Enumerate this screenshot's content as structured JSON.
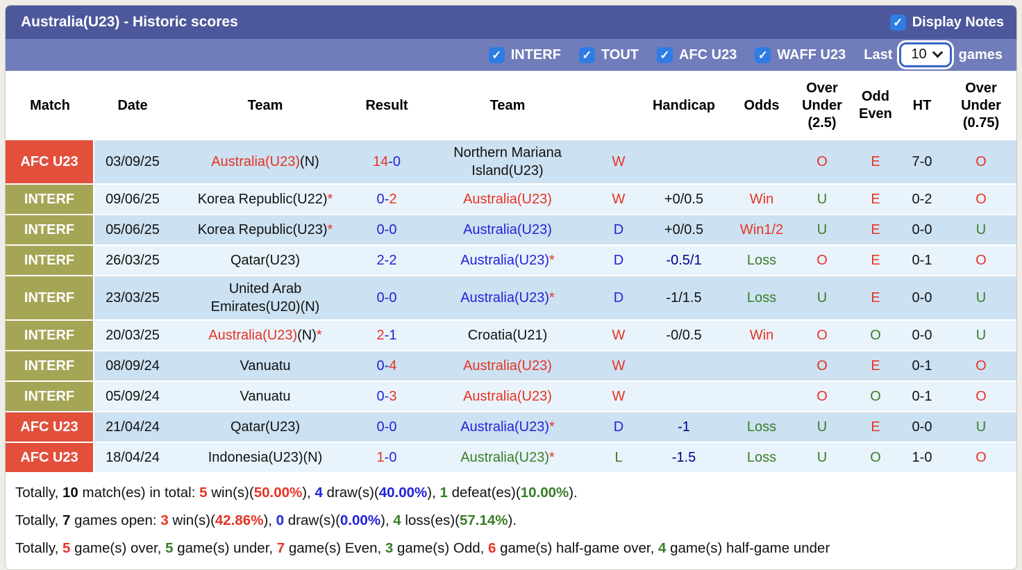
{
  "palette": {
    "titlebar_bg": "#4c589b",
    "filterbar_bg": "#717cba",
    "checkbox_blue": "#2e7ce4",
    "afc_label_bg": "#e2503c",
    "interf_label_bg": "#a5a556",
    "row_dark_bg": "#cce1f1",
    "row_light_bg": "#e9f3fb",
    "win_red": "#e63323",
    "draw_blue": "#2323d9",
    "loss_green": "#3a7d28",
    "handicap_navy": "#00008b"
  },
  "titlebar": {
    "title": "Australia(U23) - Historic scores",
    "display_notes": {
      "label": "Display Notes",
      "checked": true
    }
  },
  "filterbar": {
    "checkboxes": [
      {
        "label": "INTERF",
        "checked": true
      },
      {
        "label": "TOUT",
        "checked": true
      },
      {
        "label": "AFC U23",
        "checked": true
      },
      {
        "label": "WAFF U23",
        "checked": true
      }
    ],
    "last_label": "Last",
    "games_count": "10",
    "games_label": "games"
  },
  "table": {
    "headers": [
      "Match",
      "Date",
      "Team",
      "Result",
      "Team",
      "",
      "Handicap",
      "Odds",
      "Over Under (2.5)",
      "Odd Even",
      "HT",
      "Over Under (0.75)"
    ],
    "rows": [
      {
        "league": {
          "text": "AFC U23",
          "type": "afc"
        },
        "date": "03/09/25",
        "team1": [
          {
            "t": "Australia(U23)",
            "c": "red"
          },
          {
            "t": "(N)",
            "c": "black"
          }
        ],
        "result": [
          {
            "t": "14",
            "c": "red"
          },
          {
            "t": "-0",
            "c": "blue"
          }
        ],
        "team2": [
          {
            "t": "Northern Mariana Island(U23)",
            "c": "black"
          }
        ],
        "wdl": {
          "t": "W",
          "c": "red"
        },
        "handicap": {
          "t": "",
          "c": "black"
        },
        "odds": {
          "t": "",
          "c": "red"
        },
        "ou25": {
          "t": "O",
          "c": "red"
        },
        "oddeven": {
          "t": "E",
          "c": "red"
        },
        "ht": "7-0",
        "ou075": {
          "t": "O",
          "c": "red"
        }
      },
      {
        "league": {
          "text": "INTERF",
          "type": "interf"
        },
        "date": "09/06/25",
        "team1": [
          {
            "t": "Korea Republic(U22)",
            "c": "black"
          },
          {
            "t": "*",
            "c": "red"
          }
        ],
        "result": [
          {
            "t": "0-",
            "c": "blue"
          },
          {
            "t": "2",
            "c": "red"
          }
        ],
        "team2": [
          {
            "t": "Australia(U23)",
            "c": "red"
          }
        ],
        "wdl": {
          "t": "W",
          "c": "red"
        },
        "handicap": {
          "t": "+0/0.5",
          "c": "black"
        },
        "odds": {
          "t": "Win",
          "c": "red"
        },
        "ou25": {
          "t": "U",
          "c": "green"
        },
        "oddeven": {
          "t": "E",
          "c": "red"
        },
        "ht": "0-2",
        "ou075": {
          "t": "O",
          "c": "red"
        }
      },
      {
        "league": {
          "text": "INTERF",
          "type": "interf"
        },
        "date": "05/06/25",
        "team1": [
          {
            "t": "Korea Republic(U23)",
            "c": "black"
          },
          {
            "t": "*",
            "c": "red"
          }
        ],
        "result": [
          {
            "t": "0-0",
            "c": "blue"
          }
        ],
        "team2": [
          {
            "t": "Australia(U23)",
            "c": "blue"
          }
        ],
        "wdl": {
          "t": "D",
          "c": "blue"
        },
        "handicap": {
          "t": "+0/0.5",
          "c": "black"
        },
        "odds": {
          "t": "Win1/2",
          "c": "red"
        },
        "ou25": {
          "t": "U",
          "c": "green"
        },
        "oddeven": {
          "t": "E",
          "c": "red"
        },
        "ht": "0-0",
        "ou075": {
          "t": "U",
          "c": "green"
        }
      },
      {
        "league": {
          "text": "INTERF",
          "type": "interf"
        },
        "date": "26/03/25",
        "team1": [
          {
            "t": "Qatar(U23)",
            "c": "black"
          }
        ],
        "result": [
          {
            "t": "2-2",
            "c": "blue"
          }
        ],
        "team2": [
          {
            "t": "Australia(U23)",
            "c": "blue"
          },
          {
            "t": "*",
            "c": "red"
          }
        ],
        "wdl": {
          "t": "D",
          "c": "blue"
        },
        "handicap": {
          "t": "-0.5/1",
          "c": "navy"
        },
        "odds": {
          "t": "Loss",
          "c": "green"
        },
        "ou25": {
          "t": "O",
          "c": "red"
        },
        "oddeven": {
          "t": "E",
          "c": "red"
        },
        "ht": "0-1",
        "ou075": {
          "t": "O",
          "c": "red"
        }
      },
      {
        "league": {
          "text": "INTERF",
          "type": "interf"
        },
        "date": "23/03/25",
        "team1": [
          {
            "t": "United Arab Emirates(U20)(N)",
            "c": "black"
          }
        ],
        "result": [
          {
            "t": "0-0",
            "c": "blue"
          }
        ],
        "team2": [
          {
            "t": "Australia(U23)",
            "c": "blue"
          },
          {
            "t": "*",
            "c": "red"
          }
        ],
        "wdl": {
          "t": "D",
          "c": "blue"
        },
        "handicap": {
          "t": "-1/1.5",
          "c": "black"
        },
        "odds": {
          "t": "Loss",
          "c": "green"
        },
        "ou25": {
          "t": "U",
          "c": "green"
        },
        "oddeven": {
          "t": "E",
          "c": "red"
        },
        "ht": "0-0",
        "ou075": {
          "t": "U",
          "c": "green"
        }
      },
      {
        "league": {
          "text": "INTERF",
          "type": "interf"
        },
        "date": "20/03/25",
        "team1": [
          {
            "t": "Australia(U23)",
            "c": "red"
          },
          {
            "t": "(N)",
            "c": "black"
          },
          {
            "t": "*",
            "c": "red"
          }
        ],
        "result": [
          {
            "t": "2",
            "c": "red"
          },
          {
            "t": "-1",
            "c": "blue"
          }
        ],
        "team2": [
          {
            "t": "Croatia(U21)",
            "c": "black"
          }
        ],
        "wdl": {
          "t": "W",
          "c": "red"
        },
        "handicap": {
          "t": "-0/0.5",
          "c": "black"
        },
        "odds": {
          "t": "Win",
          "c": "red"
        },
        "ou25": {
          "t": "O",
          "c": "red"
        },
        "oddeven": {
          "t": "O",
          "c": "green"
        },
        "ht": "0-0",
        "ou075": {
          "t": "U",
          "c": "green"
        }
      },
      {
        "league": {
          "text": "INTERF",
          "type": "interf"
        },
        "date": "08/09/24",
        "team1": [
          {
            "t": "Vanuatu",
            "c": "black"
          }
        ],
        "result": [
          {
            "t": "0-",
            "c": "blue"
          },
          {
            "t": "4",
            "c": "red"
          }
        ],
        "team2": [
          {
            "t": "Australia(U23)",
            "c": "red"
          }
        ],
        "wdl": {
          "t": "W",
          "c": "red"
        },
        "handicap": {
          "t": "",
          "c": "black"
        },
        "odds": {
          "t": "",
          "c": "red"
        },
        "ou25": {
          "t": "O",
          "c": "red"
        },
        "oddeven": {
          "t": "E",
          "c": "red"
        },
        "ht": "0-1",
        "ou075": {
          "t": "O",
          "c": "red"
        }
      },
      {
        "league": {
          "text": "INTERF",
          "type": "interf"
        },
        "date": "05/09/24",
        "team1": [
          {
            "t": "Vanuatu",
            "c": "black"
          }
        ],
        "result": [
          {
            "t": "0-",
            "c": "blue"
          },
          {
            "t": "3",
            "c": "red"
          }
        ],
        "team2": [
          {
            "t": "Australia(U23)",
            "c": "red"
          }
        ],
        "wdl": {
          "t": "W",
          "c": "red"
        },
        "handicap": {
          "t": "",
          "c": "black"
        },
        "odds": {
          "t": "",
          "c": "red"
        },
        "ou25": {
          "t": "O",
          "c": "red"
        },
        "oddeven": {
          "t": "O",
          "c": "green"
        },
        "ht": "0-1",
        "ou075": {
          "t": "O",
          "c": "red"
        }
      },
      {
        "league": {
          "text": "AFC U23",
          "type": "afc"
        },
        "date": "21/04/24",
        "team1": [
          {
            "t": "Qatar(U23)",
            "c": "black"
          }
        ],
        "result": [
          {
            "t": "0-0",
            "c": "blue"
          }
        ],
        "team2": [
          {
            "t": "Australia(U23)",
            "c": "blue"
          },
          {
            "t": "*",
            "c": "red"
          }
        ],
        "wdl": {
          "t": "D",
          "c": "blue"
        },
        "handicap": {
          "t": "-1",
          "c": "navy"
        },
        "odds": {
          "t": "Loss",
          "c": "green"
        },
        "ou25": {
          "t": "U",
          "c": "green"
        },
        "oddeven": {
          "t": "E",
          "c": "red"
        },
        "ht": "0-0",
        "ou075": {
          "t": "U",
          "c": "green"
        }
      },
      {
        "league": {
          "text": "AFC U23",
          "type": "afc"
        },
        "date": "18/04/24",
        "team1": [
          {
            "t": "Indonesia(U23)(N)",
            "c": "black"
          }
        ],
        "result": [
          {
            "t": "1",
            "c": "red"
          },
          {
            "t": "-0",
            "c": "blue"
          }
        ],
        "team2": [
          {
            "t": "Australia(U23)",
            "c": "green"
          },
          {
            "t": "*",
            "c": "red"
          }
        ],
        "wdl": {
          "t": "L",
          "c": "green"
        },
        "handicap": {
          "t": "-1.5",
          "c": "navy"
        },
        "odds": {
          "t": "Loss",
          "c": "green"
        },
        "ou25": {
          "t": "U",
          "c": "green"
        },
        "oddeven": {
          "t": "O",
          "c": "green"
        },
        "ht": "1-0",
        "ou075": {
          "t": "O",
          "c": "red"
        }
      }
    ]
  },
  "summary": {
    "lines": [
      [
        {
          "t": "Totally, ",
          "c": "black"
        },
        {
          "t": "10",
          "c": "black",
          "b": true
        },
        {
          "t": " match(es) in total: ",
          "c": "black"
        },
        {
          "t": "5",
          "c": "red",
          "b": true
        },
        {
          "t": " win(s)(",
          "c": "black"
        },
        {
          "t": "50.00%",
          "c": "red",
          "b": true
        },
        {
          "t": "), ",
          "c": "black"
        },
        {
          "t": "4",
          "c": "blue",
          "b": true
        },
        {
          "t": " draw(s)(",
          "c": "black"
        },
        {
          "t": "40.00%",
          "c": "blue",
          "b": true
        },
        {
          "t": "), ",
          "c": "black"
        },
        {
          "t": "1",
          "c": "green",
          "b": true
        },
        {
          "t": " defeat(es)(",
          "c": "black"
        },
        {
          "t": "10.00%",
          "c": "green",
          "b": true
        },
        {
          "t": ").",
          "c": "black"
        }
      ],
      [
        {
          "t": "Totally, ",
          "c": "black"
        },
        {
          "t": "7",
          "c": "black",
          "b": true
        },
        {
          "t": " games open: ",
          "c": "black"
        },
        {
          "t": "3",
          "c": "red",
          "b": true
        },
        {
          "t": " win(s)(",
          "c": "black"
        },
        {
          "t": "42.86%",
          "c": "red",
          "b": true
        },
        {
          "t": "), ",
          "c": "black"
        },
        {
          "t": "0",
          "c": "blue",
          "b": true
        },
        {
          "t": " draw(s)(",
          "c": "black"
        },
        {
          "t": "0.00%",
          "c": "blue",
          "b": true
        },
        {
          "t": "), ",
          "c": "black"
        },
        {
          "t": "4",
          "c": "green",
          "b": true
        },
        {
          "t": " loss(es)(",
          "c": "black"
        },
        {
          "t": "57.14%",
          "c": "green",
          "b": true
        },
        {
          "t": ").",
          "c": "black"
        }
      ],
      [
        {
          "t": "Totally, ",
          "c": "black"
        },
        {
          "t": "5",
          "c": "red",
          "b": true
        },
        {
          "t": " game(s) over, ",
          "c": "black"
        },
        {
          "t": "5",
          "c": "green",
          "b": true
        },
        {
          "t": " game(s) under, ",
          "c": "black"
        },
        {
          "t": "7",
          "c": "red",
          "b": true
        },
        {
          "t": " game(s) Even, ",
          "c": "black"
        },
        {
          "t": "3",
          "c": "green",
          "b": true
        },
        {
          "t": " game(s) Odd, ",
          "c": "black"
        },
        {
          "t": "6",
          "c": "red",
          "b": true
        },
        {
          "t": " game(s) half-game over, ",
          "c": "black"
        },
        {
          "t": "4",
          "c": "green",
          "b": true
        },
        {
          "t": " game(s) half-game under",
          "c": "black"
        }
      ]
    ]
  }
}
